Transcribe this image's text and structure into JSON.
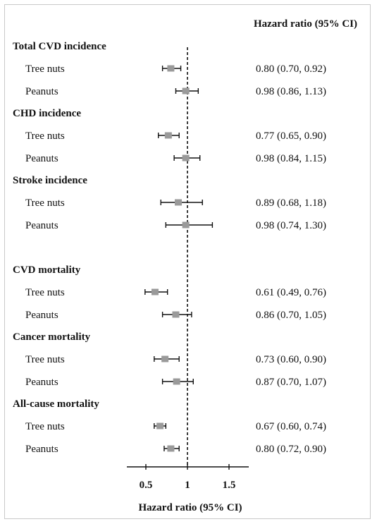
{
  "chart_data": {
    "type": "forest",
    "column_header": "Hazard ratio (95% CI)",
    "xlabel": "Hazard ratio (95% CI)",
    "xlim": [
      0.25,
      1.75
    ],
    "x_ticks": [
      "0.5",
      "1",
      "1.5"
    ],
    "x_tick_values": [
      0.5,
      1,
      1.5
    ],
    "reference_line": 1,
    "groups": [
      {
        "name": "Total CVD incidence",
        "rows": [
          {
            "label": "Tree nuts",
            "hr": 0.8,
            "lo": 0.7,
            "hi": 0.92,
            "ci_text": "0.80 (0.70, 0.92)"
          },
          {
            "label": "Peanuts",
            "hr": 0.98,
            "lo": 0.86,
            "hi": 1.13,
            "ci_text": "0.98 (0.86, 1.13)"
          }
        ]
      },
      {
        "name": "CHD incidence",
        "rows": [
          {
            "label": "Tree nuts",
            "hr": 0.77,
            "lo": 0.65,
            "hi": 0.9,
            "ci_text": "0.77 (0.65, 0.90)"
          },
          {
            "label": "Peanuts",
            "hr": 0.98,
            "lo": 0.84,
            "hi": 1.15,
            "ci_text": "0.98 (0.84, 1.15)"
          }
        ]
      },
      {
        "name": "Stroke incidence",
        "rows": [
          {
            "label": "Tree nuts",
            "hr": 0.89,
            "lo": 0.68,
            "hi": 1.18,
            "ci_text": "0.89 (0.68, 1.18)"
          },
          {
            "label": "Peanuts",
            "hr": 0.98,
            "lo": 0.74,
            "hi": 1.3,
            "ci_text": "0.98 (0.74, 1.30)"
          }
        ]
      },
      {
        "name": "CVD mortality",
        "rows": [
          {
            "label": "Tree nuts",
            "hr": 0.61,
            "lo": 0.49,
            "hi": 0.76,
            "ci_text": "0.61 (0.49, 0.76)"
          },
          {
            "label": "Peanuts",
            "hr": 0.86,
            "lo": 0.7,
            "hi": 1.05,
            "ci_text": "0.86 (0.70, 1.05)"
          }
        ]
      },
      {
        "name": "Cancer mortality",
        "rows": [
          {
            "label": "Tree nuts",
            "hr": 0.73,
            "lo": 0.6,
            "hi": 0.9,
            "ci_text": "0.73 (0.60, 0.90)"
          },
          {
            "label": "Peanuts",
            "hr": 0.87,
            "lo": 0.7,
            "hi": 1.07,
            "ci_text": "0.87 (0.70, 1.07)"
          }
        ]
      },
      {
        "name": "All-cause mortality",
        "rows": [
          {
            "label": "Tree nuts",
            "hr": 0.67,
            "lo": 0.6,
            "hi": 0.74,
            "ci_text": "0.67 (0.60, 0.74)"
          },
          {
            "label": "Peanuts",
            "hr": 0.8,
            "lo": 0.72,
            "hi": 0.9,
            "ci_text": "0.80 (0.72, 0.90)"
          }
        ]
      }
    ],
    "colors": {
      "marker": "#9a9a9a",
      "line": "#111111"
    }
  }
}
